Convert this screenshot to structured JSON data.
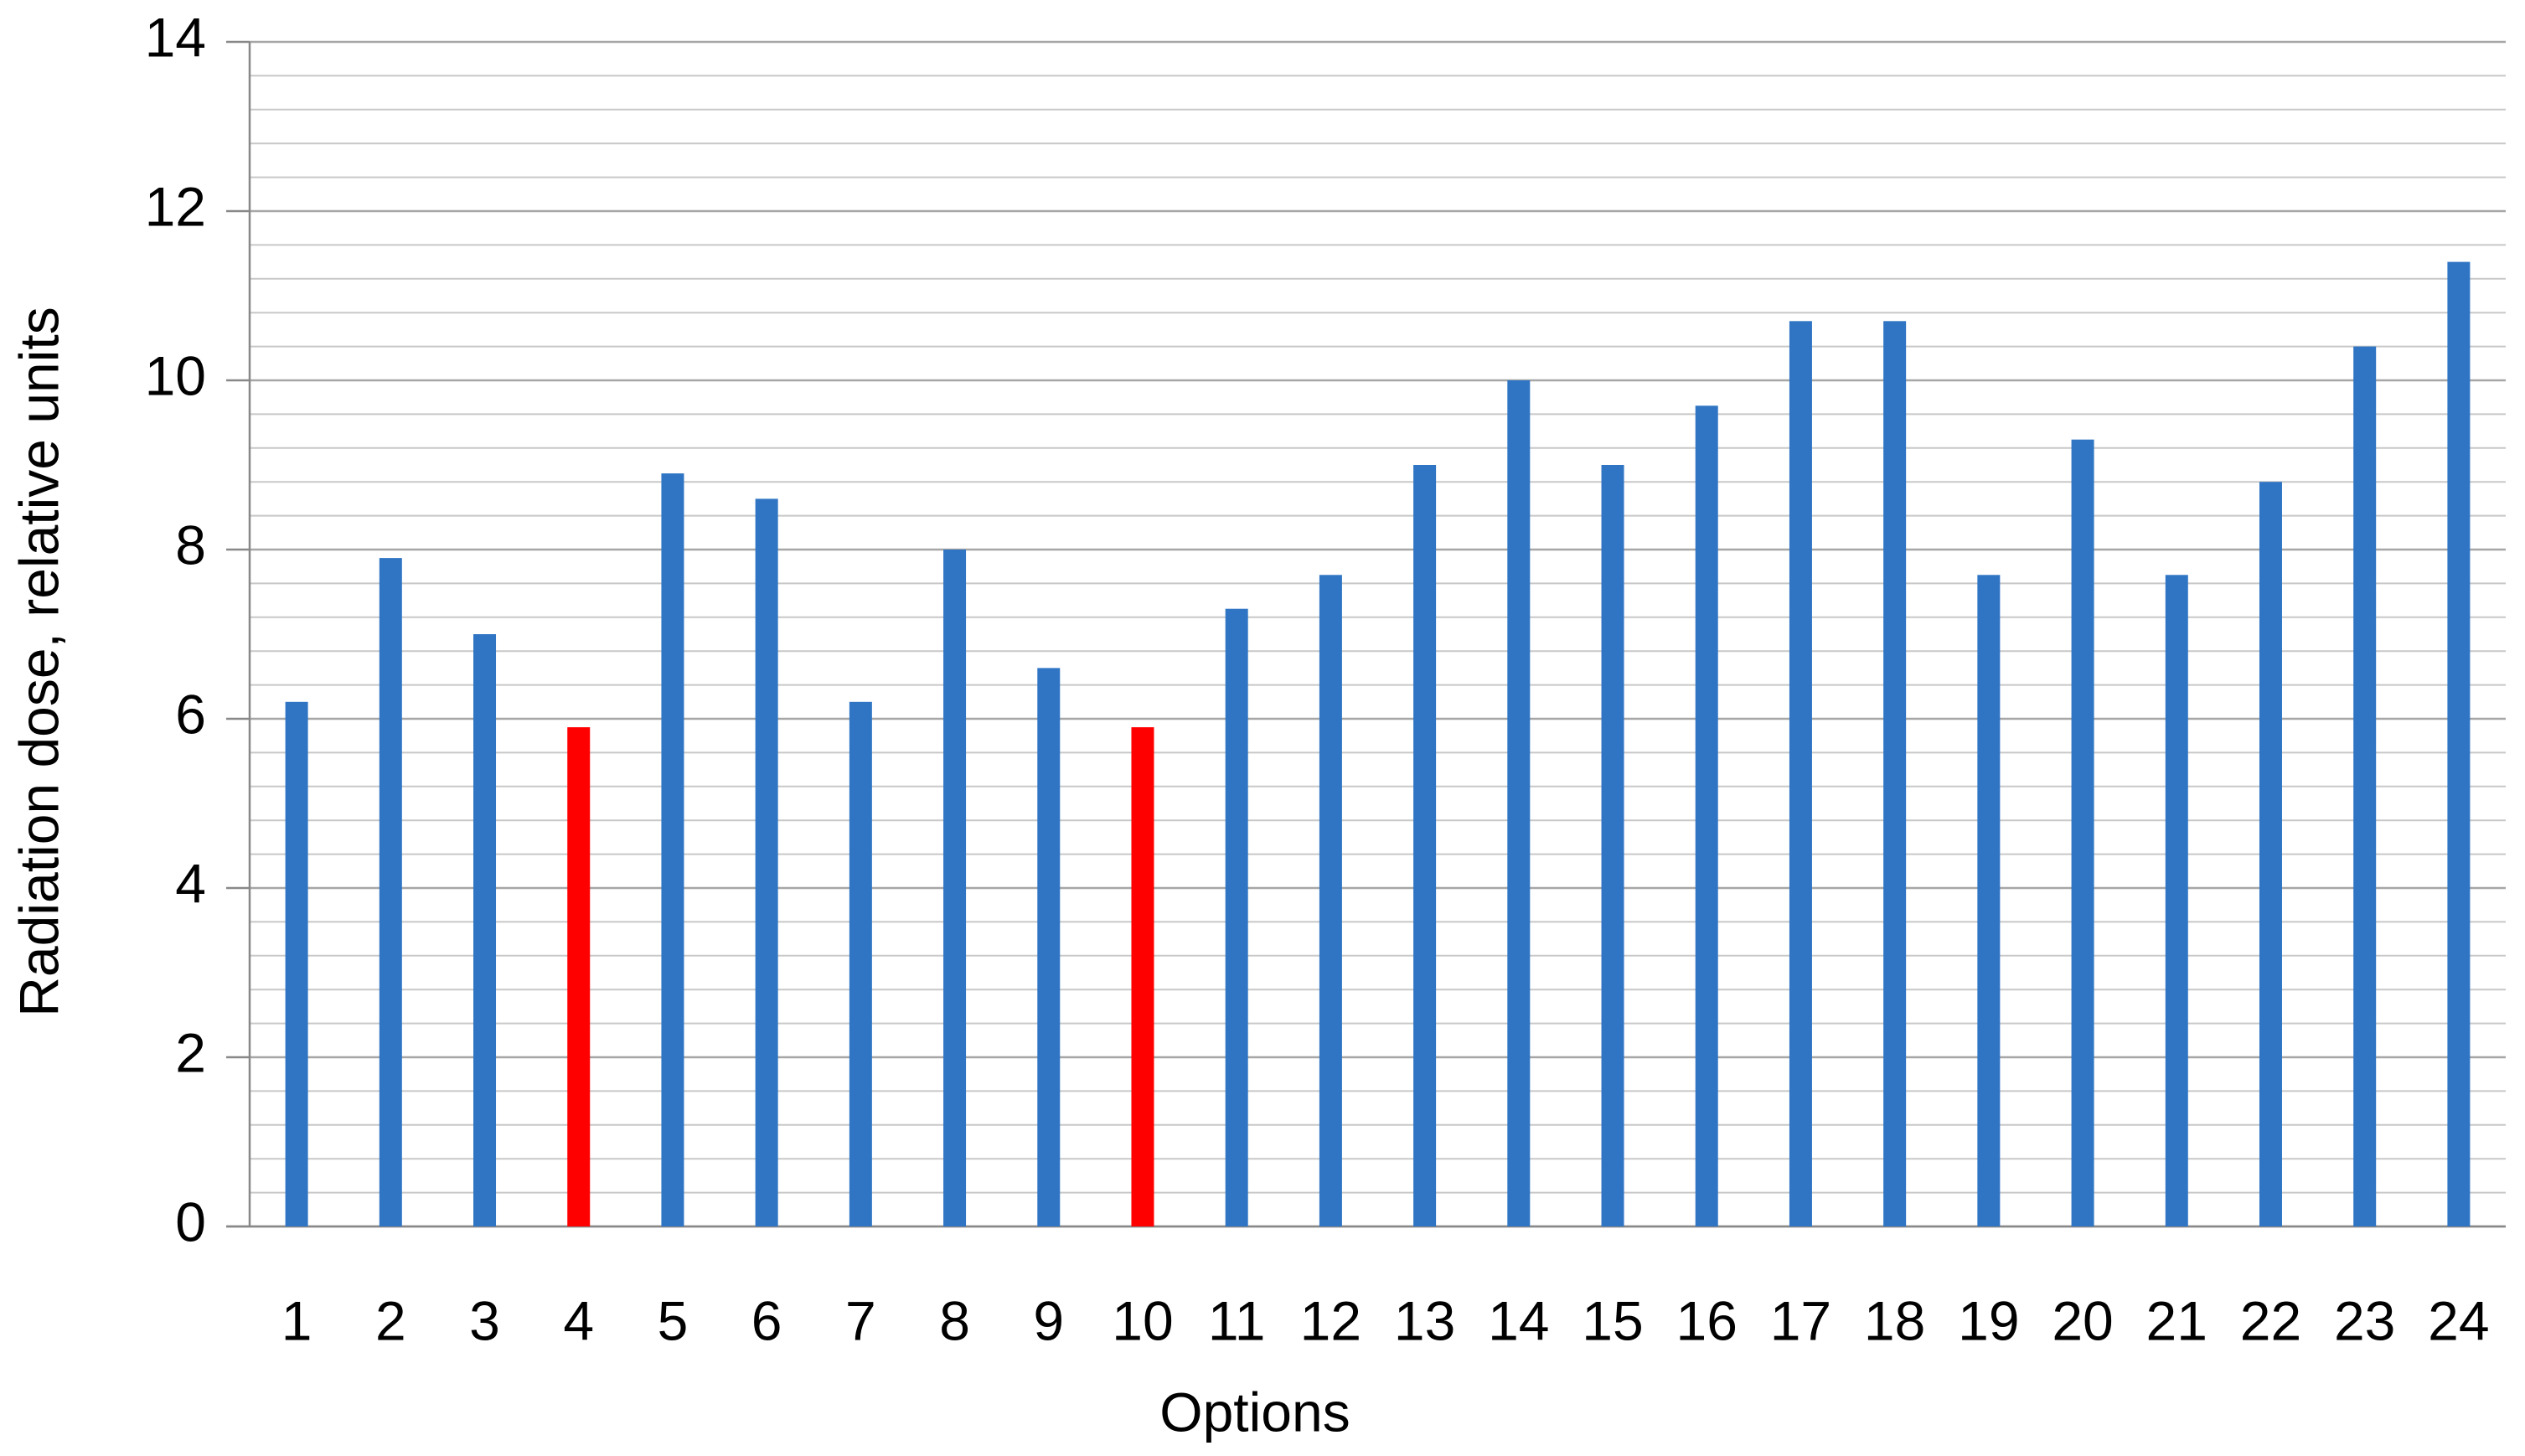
{
  "chart_data": {
    "type": "bar",
    "x_label": "Options",
    "y_label": "Radiation dose, relative units",
    "categories": [
      "1",
      "2",
      "3",
      "4",
      "5",
      "6",
      "7",
      "8",
      "9",
      "10",
      "11",
      "12",
      "13",
      "14",
      "15",
      "16",
      "17",
      "18",
      "19",
      "20",
      "21",
      "22",
      "23",
      "24"
    ],
    "values": [
      6.2,
      7.9,
      7.0,
      5.9,
      8.9,
      8.6,
      6.2,
      8.0,
      6.6,
      5.9,
      7.3,
      7.7,
      9.0,
      10.0,
      9.0,
      9.7,
      10.7,
      10.7,
      7.7,
      9.3,
      7.7,
      8.8,
      10.4,
      11.4
    ],
    "colors": [
      "#2f75c4",
      "#2f75c4",
      "#2f75c4",
      "#ff0000",
      "#2f75c4",
      "#2f75c4",
      "#2f75c4",
      "#2f75c4",
      "#2f75c4",
      "#ff0000",
      "#2f75c4",
      "#2f75c4",
      "#2f75c4",
      "#2f75c4",
      "#2f75c4",
      "#2f75c4",
      "#2f75c4",
      "#2f75c4",
      "#2f75c4",
      "#2f75c4",
      "#2f75c4",
      "#2f75c4",
      "#2f75c4",
      "#2f75c4"
    ],
    "ylim": [
      0,
      14
    ],
    "yticks": [
      0,
      2,
      4,
      6,
      8,
      10,
      12,
      14
    ],
    "grid": true,
    "minor_grid_per_major": 5
  }
}
